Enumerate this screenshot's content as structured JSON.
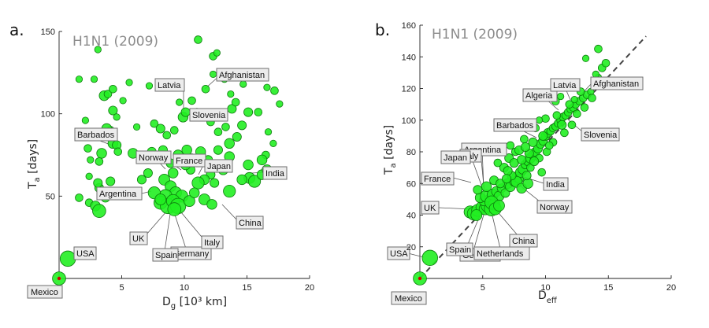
{
  "chart_data": [
    {
      "type": "scatter",
      "panel": "a.",
      "title": "H1N1 (2009)",
      "xlabel": "D",
      "xlabel_sub": "g",
      "xlabel_suffix": " [10³ km]",
      "ylabel": "T",
      "ylabel_sub": "a",
      "ylabel_suffix": " [days]",
      "xlim": [
        0,
        20
      ],
      "ylim": [
        0,
        150
      ],
      "xticks": [
        5,
        10,
        15,
        20
      ],
      "yticks": [
        50,
        100,
        150
      ],
      "points": [
        [
          0,
          0,
          1.2
        ],
        [
          0.7,
          12,
          1.4
        ],
        [
          1.6,
          121,
          0.6
        ],
        [
          2.1,
          96,
          0.6
        ],
        [
          2.3,
          79,
          0.7
        ],
        [
          2.5,
          72,
          0.6
        ],
        [
          1.6,
          49,
          0.7
        ],
        [
          2.4,
          46,
          0.7
        ],
        [
          2.9,
          44,
          0.9
        ],
        [
          3.2,
          41,
          1.2
        ],
        [
          3.7,
          49,
          0.8
        ],
        [
          3.2,
          55,
          0.8
        ],
        [
          4.1,
          59,
          0.8
        ],
        [
          3.1,
          139,
          0.6
        ],
        [
          2.8,
          121,
          0.6
        ],
        [
          3.6,
          111,
          0.9
        ],
        [
          3.9,
          112,
          0.7
        ],
        [
          4.3,
          115,
          0.7
        ],
        [
          4.3,
          102,
          0.8
        ],
        [
          4.6,
          98,
          0.6
        ],
        [
          4.1,
          90,
          0.7
        ],
        [
          3.8,
          91,
          0.9
        ],
        [
          4.3,
          82,
          0.9
        ],
        [
          4.6,
          81,
          0.8
        ],
        [
          3.4,
          76,
          0.9
        ],
        [
          3.2,
          71,
          0.7
        ],
        [
          4.7,
          77,
          0.7
        ],
        [
          5.6,
          119,
          0.6
        ],
        [
          5.1,
          108,
          0.6
        ],
        [
          2.4,
          62,
          0.6
        ],
        [
          3.1,
          58,
          0.8
        ],
        [
          6.2,
          92,
          0.6
        ],
        [
          7.2,
          117,
          0.6
        ],
        [
          7.6,
          94,
          0.7
        ],
        [
          8.1,
          91,
          0.8
        ],
        [
          9.2,
          90,
          0.7
        ],
        [
          9.9,
          98,
          0.9
        ],
        [
          10.1,
          101,
          0.8
        ],
        [
          9.6,
          107,
          0.6
        ],
        [
          10.6,
          108,
          0.7
        ],
        [
          11.1,
          145,
          0.7
        ],
        [
          12.3,
          135,
          0.7
        ],
        [
          12.6,
          137,
          0.6
        ],
        [
          12.3,
          124,
          0.6
        ],
        [
          11.7,
          115,
          0.7
        ],
        [
          13.2,
          121,
          0.6
        ],
        [
          13.7,
          112,
          0.6
        ],
        [
          14.7,
          118,
          0.6
        ],
        [
          15.1,
          101,
          0.8
        ],
        [
          15.9,
          101,
          0.7
        ],
        [
          16.6,
          116,
          0.6
        ],
        [
          17.2,
          114,
          0.7
        ],
        [
          17.6,
          106,
          0.6
        ],
        [
          16.7,
          89,
          0.6
        ],
        [
          17.1,
          82,
          0.6
        ],
        [
          16.5,
          75,
          0.7
        ],
        [
          16.2,
          72,
          0.9
        ],
        [
          15.1,
          69,
          0.9
        ],
        [
          15.2,
          61,
          1.0
        ],
        [
          14.6,
          60,
          0.9
        ],
        [
          15.6,
          59,
          1.1
        ],
        [
          13.6,
          74,
          0.9
        ],
        [
          13.1,
          66,
          0.9
        ],
        [
          12.6,
          69,
          0.9
        ],
        [
          12.1,
          63,
          0.8
        ],
        [
          11.6,
          60,
          0.9
        ],
        [
          11.1,
          58,
          1.1
        ],
        [
          10.5,
          66,
          0.8
        ],
        [
          10.1,
          69,
          0.9
        ],
        [
          9.6,
          71,
          0.8
        ],
        [
          9.5,
          75,
          0.9
        ],
        [
          10.2,
          78,
          0.9
        ],
        [
          11.3,
          77,
          0.9
        ],
        [
          12.7,
          78,
          0.8
        ],
        [
          13.6,
          82,
          0.9
        ],
        [
          14.2,
          86,
          0.8
        ],
        [
          14.6,
          93,
          0.8
        ],
        [
          13.3,
          92,
          0.7
        ],
        [
          12.7,
          89,
          0.7
        ],
        [
          12.1,
          95,
          0.7
        ],
        [
          11.5,
          99,
          0.8
        ],
        [
          11.0,
          101,
          0.7
        ],
        [
          13.8,
          103,
          0.8
        ],
        [
          14.1,
          107,
          0.7
        ],
        [
          8.3,
          78,
          0.8
        ],
        [
          8.9,
          70,
          0.8
        ],
        [
          9.1,
          64,
          0.9
        ],
        [
          8.4,
          60,
          1.0
        ],
        [
          8.9,
          56,
          1.0
        ],
        [
          9.3,
          52,
          1.1
        ],
        [
          9.8,
          50,
          1.1
        ],
        [
          8.5,
          50,
          1.2
        ],
        [
          8.1,
          46,
          1.2
        ],
        [
          8.7,
          44,
          1.4
        ],
        [
          9.1,
          47,
          1.2
        ],
        [
          9.5,
          44,
          1.4
        ],
        [
          9.2,
          42,
          1.2
        ],
        [
          10.4,
          47,
          1.0
        ],
        [
          10.8,
          52,
          0.9
        ],
        [
          11.6,
          48,
          1.0
        ],
        [
          12.2,
          45,
          0.9
        ],
        [
          13.6,
          53,
          1.1
        ],
        [
          12.4,
          58,
          0.8
        ],
        [
          7.6,
          52,
          1.1
        ],
        [
          8.1,
          48,
          1.0
        ],
        [
          7.1,
          64,
          0.8
        ],
        [
          6.6,
          60,
          0.8
        ],
        [
          5.9,
          76,
          0.9
        ],
        [
          7.4,
          77,
          0.8
        ],
        [
          8.6,
          87,
          0.7
        ],
        [
          10.6,
          73,
          0.8
        ],
        [
          11.9,
          72,
          0.8
        ],
        [
          16.2,
          63,
          0.9
        ],
        [
          16.6,
          66,
          0.9
        ]
      ],
      "annotations": [
        "Mexico",
        "USA",
        "Barbados",
        "Argentina",
        "Norway",
        "France",
        "Latvia",
        "Slovenia",
        "Afghanistan",
        "Japan",
        "India",
        "China",
        "UK",
        "Spain",
        "Germany",
        "Italy"
      ]
    },
    {
      "type": "scatter",
      "panel": "b.",
      "title": "H1N1 (2009)",
      "xlabel": "D",
      "xlabel_sub": "eff",
      "xlabel_suffix": "",
      "ylabel": "T",
      "ylabel_sub": "a",
      "ylabel_suffix": " [days]",
      "xlim": [
        0,
        20
      ],
      "ylim": [
        0,
        160
      ],
      "xticks": [
        5,
        10,
        15,
        20
      ],
      "yticks": [
        20,
        40,
        60,
        80,
        100,
        120,
        140,
        160
      ],
      "fit_line": {
        "x": [
          0,
          18
        ],
        "y": [
          0,
          153
        ]
      },
      "points": [
        [
          0,
          0,
          1.2
        ],
        [
          0.8,
          13,
          1.4
        ],
        [
          4.0,
          42,
          1.1
        ],
        [
          4.3,
          41,
          1.2
        ],
        [
          4.6,
          43,
          1.1
        ],
        [
          4.9,
          45,
          1.0
        ],
        [
          5.2,
          44,
          1.1
        ],
        [
          5.4,
          46,
          1.2
        ],
        [
          5.7,
          44,
          1.3
        ],
        [
          5.9,
          47,
          1.1
        ],
        [
          5.6,
          50,
          1.0
        ],
        [
          5.1,
          49,
          0.9
        ],
        [
          4.8,
          51,
          0.9
        ],
        [
          5.3,
          52,
          1.1
        ],
        [
          5.8,
          53,
          1.0
        ],
        [
          6.1,
          55,
          0.9
        ],
        [
          6.3,
          52,
          0.9
        ],
        [
          6.5,
          57,
          0.8
        ],
        [
          6.8,
          54,
          0.8
        ],
        [
          7.0,
          60,
          0.9
        ],
        [
          7.2,
          58,
          0.9
        ],
        [
          7.5,
          61,
          0.8
        ],
        [
          7.7,
          64,
          0.9
        ],
        [
          7.9,
          63,
          0.8
        ],
        [
          8.0,
          67,
          0.9
        ],
        [
          8.2,
          69,
          0.9
        ],
        [
          8.4,
          72,
          0.8
        ],
        [
          8.6,
          74,
          0.8
        ],
        [
          8.8,
          76,
          0.9
        ],
        [
          9.0,
          78,
          0.8
        ],
        [
          9.2,
          80,
          0.8
        ],
        [
          9.4,
          82,
          0.8
        ],
        [
          9.6,
          85,
          0.8
        ],
        [
          9.8,
          87,
          0.8
        ],
        [
          10.0,
          90,
          0.8
        ],
        [
          10.2,
          92,
          0.8
        ],
        [
          10.4,
          93,
          0.7
        ],
        [
          10.6,
          95,
          0.7
        ],
        [
          10.8,
          96,
          0.7
        ],
        [
          11.0,
          98,
          0.7
        ],
        [
          11.2,
          100,
          0.7
        ],
        [
          11.4,
          102,
          0.7
        ],
        [
          11.6,
          103,
          0.7
        ],
        [
          11.8,
          105,
          0.7
        ],
        [
          12.0,
          107,
          0.7
        ],
        [
          12.2,
          108,
          0.7
        ],
        [
          12.4,
          110,
          0.7
        ],
        [
          12.7,
          112,
          0.7
        ],
        [
          13.0,
          114,
          0.7
        ],
        [
          13.3,
          116,
          0.7
        ],
        [
          13.6,
          118,
          0.6
        ],
        [
          13.9,
          122,
          0.6
        ],
        [
          14.2,
          127,
          0.6
        ],
        [
          14.5,
          133,
          0.7
        ],
        [
          14.8,
          136,
          0.7
        ],
        [
          14.2,
          145,
          0.7
        ],
        [
          13.2,
          139,
          0.6
        ],
        [
          12.3,
          113,
          0.6
        ],
        [
          11.2,
          115,
          0.6
        ],
        [
          10.0,
          101,
          0.7
        ],
        [
          9.2,
          95,
          0.7
        ],
        [
          8.9,
          96,
          0.6
        ],
        [
          9.5,
          100,
          0.6
        ],
        [
          8.3,
          88,
          0.7
        ],
        [
          7.6,
          80,
          0.7
        ],
        [
          7.1,
          76,
          0.8
        ],
        [
          7.9,
          81,
          0.8
        ],
        [
          8.7,
          79,
          0.8
        ],
        [
          9.5,
          76,
          0.7
        ],
        [
          10.1,
          80,
          0.7
        ],
        [
          10.6,
          86,
          0.7
        ],
        [
          11.5,
          92,
          0.7
        ],
        [
          12.1,
          97,
          0.7
        ],
        [
          7.7,
          61,
          1.0
        ],
        [
          8.1,
          57,
          0.9
        ],
        [
          8.6,
          60,
          0.9
        ],
        [
          7.3,
          65,
          0.8
        ],
        [
          6.7,
          70,
          0.8
        ],
        [
          6.2,
          73,
          0.7
        ],
        [
          5.9,
          62,
          0.8
        ],
        [
          5.3,
          58,
          0.9
        ],
        [
          4.6,
          56,
          0.8
        ],
        [
          5.7,
          48,
          1.2
        ],
        [
          6.0,
          44,
          1.1
        ],
        [
          6.3,
          46,
          1.0
        ],
        [
          4.5,
          40,
          1.0
        ],
        [
          8.4,
          83,
          0.8
        ],
        [
          9.0,
          86,
          0.8
        ],
        [
          9.8,
          90,
          0.8
        ],
        [
          10.9,
          103,
          0.7
        ],
        [
          11.9,
          110,
          0.7
        ],
        [
          12.8,
          118,
          0.7
        ],
        [
          13.7,
          114,
          0.7
        ],
        [
          7.5,
          73,
          0.8
        ],
        [
          8.1,
          75,
          0.8
        ],
        [
          8.8,
          70,
          0.7
        ],
        [
          7.0,
          68,
          0.8
        ],
        [
          6.4,
          60,
          0.8
        ],
        [
          6.9,
          63,
          0.8
        ],
        [
          10.3,
          84,
          0.7
        ],
        [
          11.3,
          97,
          0.8
        ],
        [
          12.5,
          104,
          0.7
        ],
        [
          13.1,
          108,
          0.7
        ],
        [
          9.1,
          74,
          0.8
        ],
        [
          8.5,
          65,
          0.8
        ],
        [
          9.7,
          67,
          0.7
        ],
        [
          7.2,
          84,
          0.7
        ],
        [
          10.8,
          112,
          0.7
        ],
        [
          14.0,
          129,
          0.6
        ]
      ],
      "annotations": [
        "Mexico",
        "USA",
        "Spain",
        "Germany",
        "Netherlands",
        "China",
        "UK",
        "France",
        "Japan",
        "Italy",
        "Argentina",
        "Norway",
        "India",
        "Barbados",
        "Algeria",
        "Latvia",
        "Afghanistan",
        "Slovenia"
      ]
    }
  ]
}
